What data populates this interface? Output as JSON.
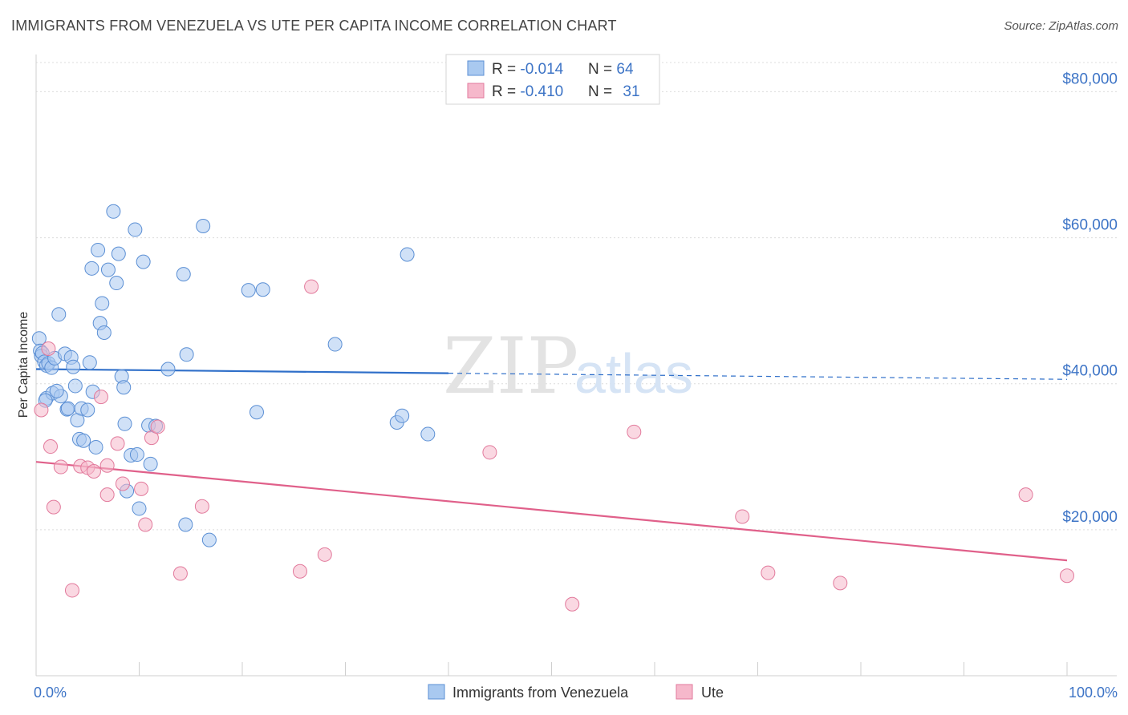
{
  "header": {
    "title": "IMMIGRANTS FROM VENEZUELA VS UTE PER CAPITA INCOME CORRELATION CHART",
    "source": "Source: ZipAtlas.com"
  },
  "watermark": {
    "zip": "ZIP",
    "atlas": "atlas"
  },
  "legend_box": {
    "rows": [
      {
        "r_label": "R = ",
        "r_value": "-0.014",
        "n_label": "N = ",
        "n_value": "64"
      },
      {
        "r_label": "R = ",
        "r_value": "-0.410",
        "n_label": "N = ",
        "n_value": "31"
      }
    ]
  },
  "colors": {
    "blue_fill": "#a9c9f0",
    "blue_stroke": "#5b8fd4",
    "blue_line": "#2f6fc9",
    "pink_fill": "#f6b8cb",
    "pink_stroke": "#e27a9c",
    "pink_line": "#e0608a",
    "accent_text": "#3d74c6",
    "grid": "#dcdcdc"
  },
  "chart_data": {
    "type": "scatter",
    "ylabel": "Per Capita Income",
    "xlim": [
      0,
      100
    ],
    "ylim": [
      0,
      84000
    ],
    "x_tick_labels": {
      "min": "0.0%",
      "max": "100.0%"
    },
    "y_ticks": [
      {
        "value": 20000,
        "label": "$20,000"
      },
      {
        "value": 40000,
        "label": "$40,000"
      },
      {
        "value": 60000,
        "label": "$60,000"
      },
      {
        "value": 80000,
        "label": "$80,000"
      }
    ],
    "grid": true,
    "legend_position": "bottom",
    "series": [
      {
        "name": "Immigrants from Venezuela",
        "color": "blue",
        "trend": {
          "x0": 0,
          "y0": 42000,
          "x1": 100,
          "y1": 40600,
          "solid_until": 40
        },
        "points": [
          [
            0.3,
            46200
          ],
          [
            0.4,
            44500
          ],
          [
            0.5,
            43800
          ],
          [
            0.6,
            44200
          ],
          [
            0.8,
            43000
          ],
          [
            1.0,
            42500
          ],
          [
            1.2,
            42800
          ],
          [
            1.5,
            42200
          ],
          [
            1.8,
            43500
          ],
          [
            2.2,
            49500
          ],
          [
            2.8,
            44100
          ],
          [
            3.0,
            36500
          ],
          [
            3.4,
            43600
          ],
          [
            3.6,
            42300
          ],
          [
            3.8,
            39700
          ],
          [
            4.0,
            35000
          ],
          [
            4.2,
            32400
          ],
          [
            4.6,
            32200
          ],
          [
            5.2,
            42900
          ],
          [
            5.5,
            38900
          ],
          [
            5.8,
            31300
          ],
          [
            5.4,
            55800
          ],
          [
            6.0,
            58300
          ],
          [
            6.2,
            48300
          ],
          [
            6.4,
            51000
          ],
          [
            6.6,
            47000
          ],
          [
            7.0,
            55600
          ],
          [
            7.5,
            63600
          ],
          [
            7.8,
            53800
          ],
          [
            8.0,
            57800
          ],
          [
            8.3,
            41000
          ],
          [
            8.5,
            39500
          ],
          [
            8.8,
            25300
          ],
          [
            8.6,
            34500
          ],
          [
            9.2,
            30200
          ],
          [
            9.6,
            61100
          ],
          [
            9.8,
            30300
          ],
          [
            10.0,
            22900
          ],
          [
            10.4,
            56700
          ],
          [
            10.9,
            34300
          ],
          [
            11.1,
            29000
          ],
          [
            11.6,
            34200
          ],
          [
            12.8,
            42000
          ],
          [
            14.3,
            55000
          ],
          [
            14.5,
            20700
          ],
          [
            14.6,
            44000
          ],
          [
            16.2,
            61600
          ],
          [
            16.8,
            18600
          ],
          [
            20.6,
            52800
          ],
          [
            21.4,
            36100
          ],
          [
            22.0,
            52900
          ],
          [
            29.0,
            45400
          ],
          [
            35.0,
            34700
          ],
          [
            35.5,
            35600
          ],
          [
            36.0,
            57700
          ],
          [
            38.0,
            33100
          ],
          [
            1.0,
            38000
          ],
          [
            1.6,
            38700
          ],
          [
            2.4,
            38300
          ],
          [
            3.1,
            36600
          ],
          [
            4.4,
            36600
          ],
          [
            2.0,
            39000
          ],
          [
            0.9,
            37700
          ],
          [
            5.0,
            36400
          ]
        ]
      },
      {
        "name": "Ute",
        "color": "pink",
        "trend": {
          "x0": 0,
          "y0": 29300,
          "x1": 100,
          "y1": 15800
        },
        "points": [
          [
            0.5,
            36400
          ],
          [
            1.2,
            44800
          ],
          [
            1.4,
            31400
          ],
          [
            1.7,
            23100
          ],
          [
            2.4,
            28600
          ],
          [
            3.5,
            11700
          ],
          [
            4.3,
            28700
          ],
          [
            5.0,
            28500
          ],
          [
            5.6,
            28000
          ],
          [
            6.3,
            38200
          ],
          [
            6.9,
            24800
          ],
          [
            7.9,
            31800
          ],
          [
            8.4,
            26300
          ],
          [
            10.2,
            25600
          ],
          [
            10.6,
            20700
          ],
          [
            11.2,
            32600
          ],
          [
            11.8,
            34100
          ],
          [
            14.0,
            14000
          ],
          [
            16.1,
            23200
          ],
          [
            25.6,
            14300
          ],
          [
            26.7,
            53300
          ],
          [
            28.0,
            16600
          ],
          [
            44.0,
            30600
          ],
          [
            52.0,
            9800
          ],
          [
            58.0,
            33400
          ],
          [
            68.5,
            21800
          ],
          [
            71.0,
            14100
          ],
          [
            78.0,
            12700
          ],
          [
            96.0,
            24800
          ],
          [
            100.0,
            13700
          ],
          [
            6.9,
            28800
          ]
        ]
      }
    ]
  }
}
